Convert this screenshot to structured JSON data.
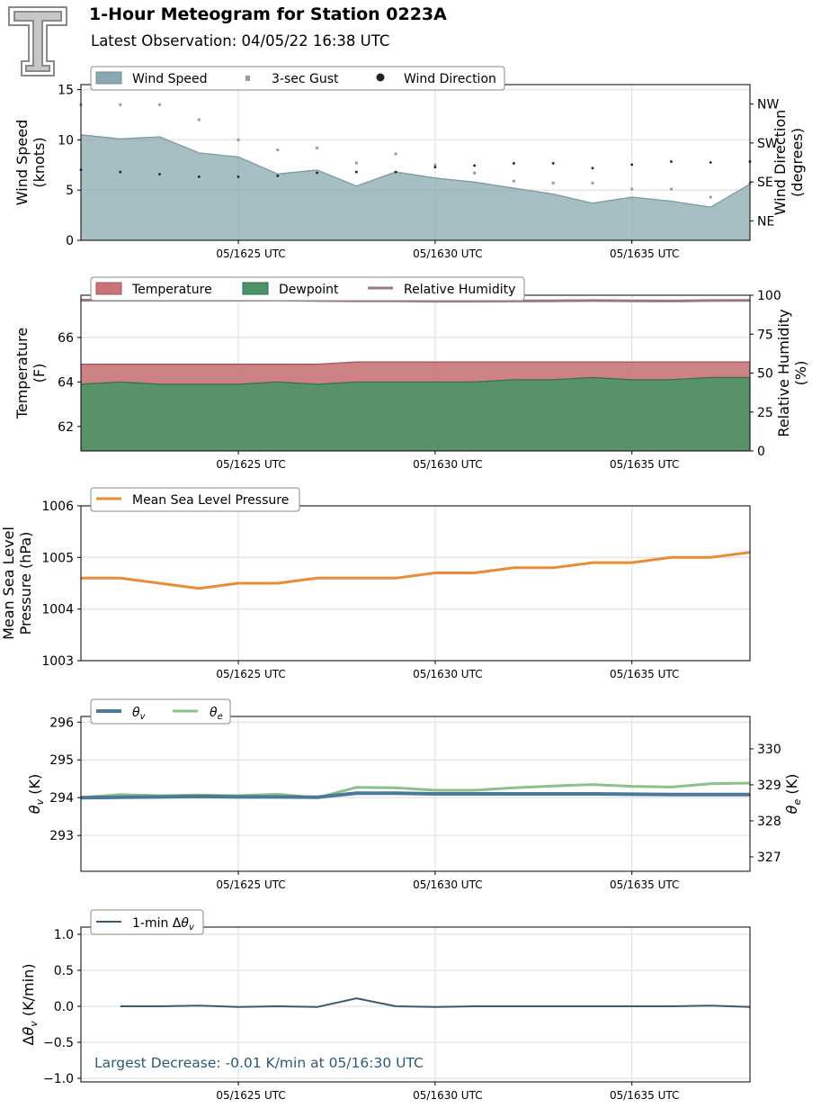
{
  "header": {
    "title": "1-Hour Meteogram for Station 0223A",
    "subtitle": "Latest Observation: 04/05/22 16:38 UTC"
  },
  "colors": {
    "wind_speed": "#8aa8b0",
    "gust": "#9a9aa8",
    "wind_direction": "#222222",
    "temperature": "#c87478",
    "dewpoint": "#4a9468",
    "humidity": "#9a7a7e",
    "pressure": "#e98d35",
    "theta_v": "#4a7a98",
    "theta_e": "#8cc08c",
    "dtheta": "#3a5a6e",
    "annotation": "#2a5a78"
  },
  "chart_data": [
    {
      "type": "area",
      "id": "wind",
      "x_minutes": [
        21,
        22,
        23,
        24,
        25,
        26,
        27,
        28,
        29,
        30,
        31,
        32,
        33,
        34,
        35,
        36,
        37,
        38
      ],
      "xtick_labels": [
        "05/1625 UTC",
        "05/1630 UTC",
        "05/1635 UTC"
      ],
      "xticks": [
        25,
        30,
        35
      ],
      "xlim": [
        21,
        38
      ],
      "ylabel": [
        "Wind Speed",
        "(knots)"
      ],
      "ylim": [
        0,
        15.5
      ],
      "yticks": [
        0,
        5,
        10,
        15
      ],
      "y2label": [
        "Wind Direction",
        "(degrees)"
      ],
      "y2lim": [
        0,
        360
      ],
      "y2ticks": [
        45,
        135,
        225,
        315
      ],
      "y2tick_labels": [
        "NE",
        "SE",
        "SW",
        "NW"
      ],
      "legend": [
        "Wind Speed",
        "3-sec Gust",
        "Wind Direction"
      ],
      "legend_position": "top-left",
      "wind_speed": [
        10.5,
        10.1,
        10.3,
        8.7,
        8.3,
        6.6,
        7.0,
        5.4,
        6.8,
        6.2,
        5.8,
        5.2,
        4.6,
        3.7,
        4.3,
        3.9,
        3.3,
        5.6
      ],
      "gust": [
        13.5,
        13.5,
        13.5,
        12.0,
        10.0,
        9.0,
        9.2,
        7.7,
        8.6,
        7.5,
        6.7,
        5.9,
        5.7,
        5.7,
        5.1,
        5.1,
        4.3,
        5.7
      ],
      "wind_direction": [
        163,
        158,
        153,
        147,
        147,
        149,
        156,
        158,
        158,
        169,
        173,
        178,
        178,
        167,
        175,
        182,
        180,
        182
      ]
    },
    {
      "type": "area",
      "id": "thermo",
      "x_minutes": [
        21,
        22,
        23,
        24,
        25,
        26,
        27,
        28,
        29,
        30,
        31,
        32,
        33,
        34,
        35,
        36,
        37,
        38
      ],
      "xtick_labels": [
        "05/1625 UTC",
        "05/1630 UTC",
        "05/1635 UTC"
      ],
      "xticks": [
        25,
        30,
        35
      ],
      "xlim": [
        21,
        38
      ],
      "ylabel": [
        "Temperature",
        "(F)"
      ],
      "ylim": [
        60.9,
        67.9
      ],
      "yticks": [
        62,
        64,
        66
      ],
      "y2label": [
        "Relative Humidity",
        "(%)"
      ],
      "y2lim": [
        0,
        100
      ],
      "y2ticks": [
        0,
        25,
        50,
        75,
        100
      ],
      "legend": [
        "Temperature",
        "Dewpoint",
        "Relative Humidity"
      ],
      "legend_position": "top-left",
      "temperature": [
        64.8,
        64.8,
        64.8,
        64.8,
        64.8,
        64.8,
        64.8,
        64.9,
        64.9,
        64.9,
        64.9,
        64.9,
        64.9,
        64.9,
        64.9,
        64.9,
        64.9,
        64.9
      ],
      "dewpoint": [
        63.9,
        64.0,
        63.9,
        63.9,
        63.9,
        64.0,
        63.9,
        64.0,
        64.0,
        64.0,
        64.0,
        64.1,
        64.1,
        64.2,
        64.1,
        64.1,
        64.2,
        64.2
      ],
      "humidity": [
        96.8,
        96.8,
        96.8,
        96.8,
        96.8,
        96.9,
        96.6,
        96.4,
        96.4,
        96.2,
        96.2,
        96.3,
        96.4,
        96.6,
        96.4,
        96.3,
        96.6,
        96.7
      ]
    },
    {
      "type": "line",
      "id": "pressure",
      "x_minutes": [
        21,
        22,
        23,
        24,
        25,
        26,
        27,
        28,
        29,
        30,
        31,
        32,
        33,
        34,
        35,
        36,
        37,
        38
      ],
      "xtick_labels": [
        "05/1625 UTC",
        "05/1630 UTC",
        "05/1635 UTC"
      ],
      "xticks": [
        25,
        30,
        35
      ],
      "xlim": [
        21,
        38
      ],
      "ylabel": [
        "Mean Sea Level",
        "Pressure (hPa)"
      ],
      "ylim": [
        1003,
        1006
      ],
      "yticks": [
        1003,
        1004,
        1005,
        1006
      ],
      "legend": [
        "Mean Sea Level Pressure"
      ],
      "legend_position": "top-left",
      "values": [
        1004.6,
        1004.6,
        1004.5,
        1004.4,
        1004.5,
        1004.5,
        1004.6,
        1004.6,
        1004.6,
        1004.7,
        1004.7,
        1004.8,
        1004.8,
        1004.9,
        1004.9,
        1005.0,
        1005.0,
        1005.1
      ]
    },
    {
      "type": "line",
      "id": "theta",
      "x_minutes": [
        21,
        22,
        23,
        24,
        25,
        26,
        27,
        28,
        29,
        30,
        31,
        32,
        33,
        34,
        35,
        36,
        37,
        38
      ],
      "xtick_labels": [
        "05/1625 UTC",
        "05/1630 UTC",
        "05/1635 UTC"
      ],
      "xticks": [
        25,
        30,
        35
      ],
      "xlim": [
        21,
        38
      ],
      "ylabel": "θ_v (K)",
      "ylim": [
        292.05,
        296.15
      ],
      "yticks": [
        293,
        294,
        295,
        296
      ],
      "y2label": "θ_e (K)",
      "y2lim": [
        326.6,
        330.9
      ],
      "y2ticks": [
        327,
        328,
        329,
        330
      ],
      "legend": [
        "θ_v",
        "θ_e"
      ],
      "legend_position": "top-left",
      "theta_v": [
        294.0,
        294.01,
        294.02,
        294.03,
        294.02,
        294.02,
        294.01,
        294.12,
        294.12,
        294.1,
        294.1,
        294.1,
        294.1,
        294.1,
        294.09,
        294.08,
        294.08,
        294.08
      ],
      "theta_e": [
        328.65,
        328.73,
        328.7,
        328.72,
        328.7,
        328.74,
        328.64,
        328.93,
        328.92,
        328.85,
        328.85,
        328.92,
        328.97,
        329.01,
        328.96,
        328.94,
        329.03,
        329.05
      ]
    },
    {
      "type": "line",
      "id": "dtheta",
      "x_minutes": [
        22,
        23,
        24,
        25,
        26,
        27,
        28,
        29,
        30,
        31,
        32,
        33,
        34,
        35,
        36,
        37,
        38
      ],
      "xtick_labels": [
        "05/1625 UTC",
        "05/1630 UTC",
        "05/1635 UTC"
      ],
      "xticks": [
        25,
        30,
        35
      ],
      "xlim": [
        21,
        38
      ],
      "ylabel": "Δθ_v (K/min)",
      "ylim": [
        -1.05,
        1.1
      ],
      "yticks": [
        -1.0,
        -0.5,
        0.0,
        0.5,
        1.0
      ],
      "ytick_labels": [
        "−1.0",
        "−0.5",
        "0.0",
        "0.5",
        "1.0"
      ],
      "legend": [
        "1-min Δθ_v"
      ],
      "legend_position": "top-left",
      "values": [
        0.0,
        0.0,
        0.01,
        -0.01,
        0.0,
        -0.01,
        0.11,
        0.0,
        -0.01,
        0.0,
        0.0,
        0.0,
        0.0,
        0.0,
        0.0,
        0.01,
        -0.01
      ],
      "annotation": "Largest Decrease: -0.01 K/min at 05/16:30 UTC"
    }
  ]
}
